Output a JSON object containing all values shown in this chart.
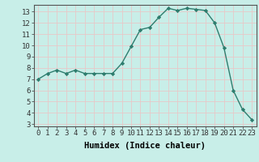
{
  "x": [
    0,
    1,
    2,
    3,
    4,
    5,
    6,
    7,
    8,
    9,
    10,
    11,
    12,
    13,
    14,
    15,
    16,
    17,
    18,
    19,
    20,
    21,
    22,
    23
  ],
  "y": [
    7.0,
    7.5,
    7.8,
    7.5,
    7.8,
    7.5,
    7.5,
    7.5,
    7.5,
    8.4,
    9.9,
    11.4,
    11.6,
    12.5,
    13.3,
    13.1,
    13.3,
    13.2,
    13.1,
    12.0,
    9.8,
    6.0,
    4.3,
    3.4
  ],
  "xlabel": "Humidex (Indice chaleur)",
  "ylim": [
    2.8,
    13.6
  ],
  "xlim": [
    -0.5,
    23.5
  ],
  "yticks": [
    3,
    4,
    5,
    6,
    7,
    8,
    9,
    10,
    11,
    12,
    13
  ],
  "xticks": [
    0,
    1,
    2,
    3,
    4,
    5,
    6,
    7,
    8,
    9,
    10,
    11,
    12,
    13,
    14,
    15,
    16,
    17,
    18,
    19,
    20,
    21,
    22,
    23
  ],
  "line_color": "#2e7d6e",
  "bg_color": "#c8eee8",
  "grid_color": "#e8c8c8",
  "marker": "D",
  "marker_size": 2.2,
  "line_width": 1.0,
  "xlabel_fontsize": 7.5,
  "tick_fontsize": 6.5,
  "spine_color": "#555555"
}
